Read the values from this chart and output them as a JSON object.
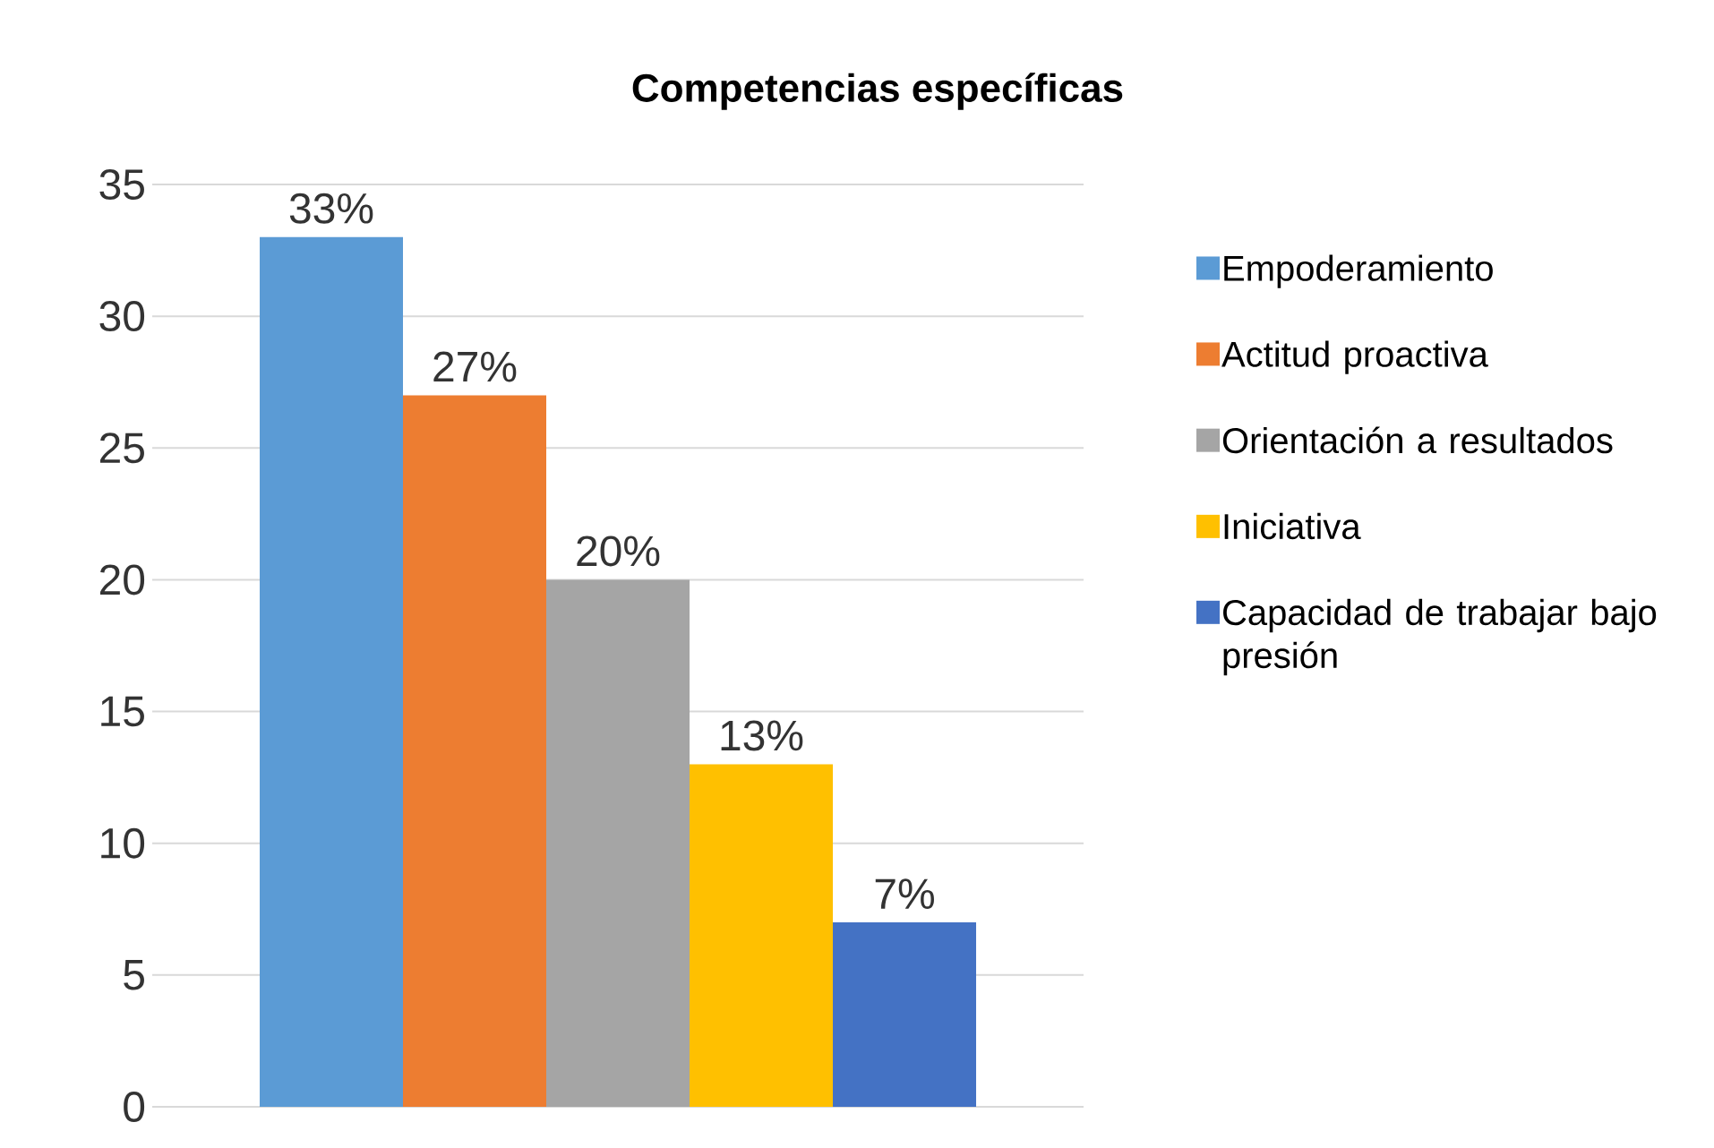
{
  "chart_data": {
    "type": "bar",
    "title": "Competencias específicas",
    "categories": [
      null
    ],
    "series": [
      {
        "name": "Empoderamiento",
        "color": "#5b9bd5",
        "values": [
          33
        ],
        "value_labels": [
          "33%"
        ]
      },
      {
        "name": "Actitud proactiva",
        "color": "#ed7d31",
        "values": [
          27
        ],
        "value_labels": [
          "27%"
        ]
      },
      {
        "name": "Orientación a resultados",
        "color": "#a5a5a5",
        "values": [
          20
        ],
        "value_labels": [
          "20%"
        ]
      },
      {
        "name": "Iniciativa",
        "color": "#ffc000",
        "values": [
          13
        ],
        "value_labels": [
          "13%"
        ]
      },
      {
        "name": "Capacidad de trabajar bajo presión",
        "color": "#4472c4",
        "values": [
          7
        ],
        "value_labels": [
          "7%"
        ]
      }
    ],
    "ylim": [
      0,
      35
    ],
    "yticks": [
      0,
      5,
      10,
      15,
      20,
      25,
      30,
      35
    ],
    "grid": "y",
    "legend": "right"
  }
}
